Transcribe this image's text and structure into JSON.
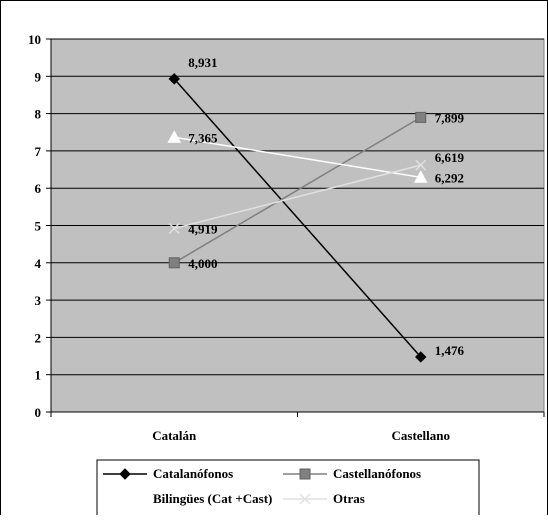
{
  "chart_data": {
    "type": "line",
    "categories": [
      "Catalán",
      "Castellano"
    ],
    "ylim": [
      0,
      10
    ],
    "yticks": [
      "0",
      "1",
      "2",
      "3",
      "4",
      "5",
      "6",
      "7",
      "8",
      "9",
      "10"
    ],
    "grid": true,
    "legend_position": "bottom",
    "plot_background": "#c0c0c0",
    "series": [
      {
        "name": "Catalanófonos",
        "values": [
          8.931,
          1.476
        ],
        "labels": [
          "8,931",
          "1,476"
        ],
        "color": "#000000",
        "marker": "diamond"
      },
      {
        "name": "Castellanófonos",
        "values": [
          4.0,
          7.899
        ],
        "labels": [
          "4,000",
          "7,899"
        ],
        "color": "#808080",
        "marker": "square"
      },
      {
        "name": "Bilingües (Cat +Cast)",
        "values": [
          7.365,
          6.292
        ],
        "labels": [
          "7,365",
          "6,292"
        ],
        "color": "#ffffff",
        "marker": "triangle"
      },
      {
        "name": "Otras",
        "values": [
          4.919,
          6.619
        ],
        "labels": [
          "4,919",
          "6,619"
        ],
        "color": "#e0e0e0",
        "marker": "x"
      }
    ]
  }
}
